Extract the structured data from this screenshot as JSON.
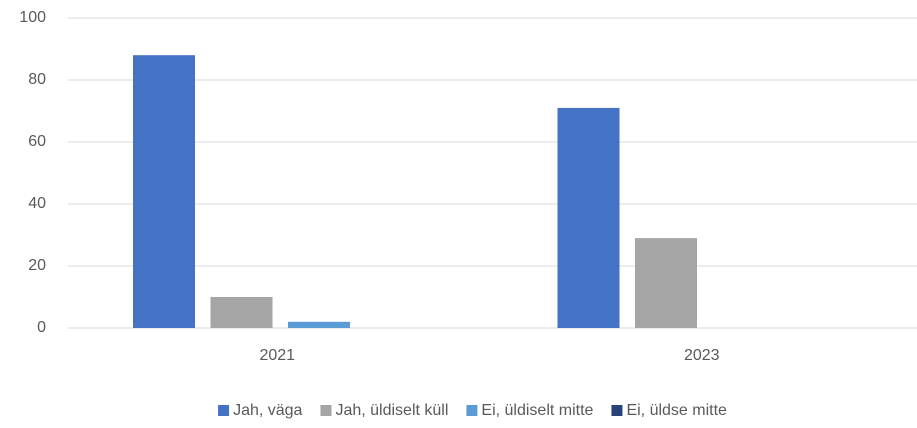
{
  "chart_data": {
    "type": "bar",
    "categories": [
      "2021",
      "2023"
    ],
    "series": [
      {
        "name": "Jah, väga",
        "color": "#4472c4",
        "values": [
          88,
          71
        ]
      },
      {
        "name": "Jah, üldiselt küll",
        "color": "#a5a5a5",
        "values": [
          10,
          29
        ]
      },
      {
        "name": "Ei, üldiselt mitte",
        "color": "#5b9bd5",
        "values": [
          2,
          0
        ]
      },
      {
        "name": "Ei, üldse mitte",
        "color": "#264478",
        "values": [
          0,
          0
        ]
      }
    ],
    "ylim": [
      0,
      100
    ],
    "yticks": [
      0,
      20,
      40,
      60,
      80,
      100
    ],
    "grid": true,
    "legend": "bottom"
  }
}
